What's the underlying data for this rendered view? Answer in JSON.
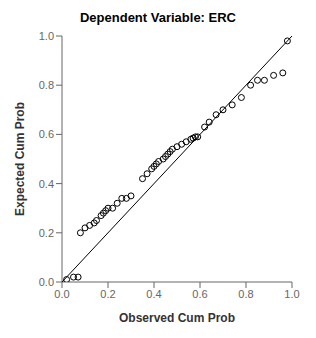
{
  "chart_data": {
    "type": "scatter",
    "title": "Dependent Variable: ERC",
    "xlabel": "Observed Cum Prob",
    "ylabel": "Expected Cum Prob",
    "xlim": [
      0.0,
      1.0
    ],
    "ylim": [
      0.0,
      1.0
    ],
    "xticks": [
      {
        "value": 0.0,
        "label": "0.0"
      },
      0.2,
      0.4,
      0.6,
      0.8,
      {
        "value": 1.0,
        "label": "1.0"
      }
    ],
    "yticks": [
      {
        "value": 0.0,
        "label": "0.0"
      },
      0.2,
      0.4,
      0.6,
      0.8,
      {
        "value": 1.0,
        "label": "1.0"
      }
    ],
    "grid": false,
    "series": [
      {
        "type": "line",
        "color": "#000000",
        "x": [
          0,
          1
        ],
        "values": [
          0,
          1
        ]
      },
      {
        "type": "scatter",
        "color": "#000000",
        "marker": "circle",
        "x": [
          0.02,
          0.05,
          0.07,
          0.08,
          0.1,
          0.12,
          0.14,
          0.15,
          0.17,
          0.18,
          0.19,
          0.2,
          0.22,
          0.24,
          0.26,
          0.28,
          0.3,
          0.35,
          0.37,
          0.39,
          0.4,
          0.41,
          0.42,
          0.44,
          0.45,
          0.46,
          0.47,
          0.48,
          0.5,
          0.52,
          0.54,
          0.56,
          0.57,
          0.58,
          0.59,
          0.62,
          0.64,
          0.67,
          0.7,
          0.74,
          0.78,
          0.82,
          0.85,
          0.88,
          0.92,
          0.96,
          0.98
        ],
        "values": [
          0.01,
          0.02,
          0.02,
          0.2,
          0.22,
          0.23,
          0.24,
          0.25,
          0.27,
          0.28,
          0.29,
          0.3,
          0.3,
          0.32,
          0.34,
          0.34,
          0.35,
          0.42,
          0.44,
          0.46,
          0.47,
          0.48,
          0.49,
          0.5,
          0.51,
          0.52,
          0.53,
          0.54,
          0.55,
          0.56,
          0.57,
          0.58,
          0.585,
          0.59,
          0.59,
          0.63,
          0.65,
          0.68,
          0.7,
          0.72,
          0.75,
          0.8,
          0.82,
          0.82,
          0.84,
          0.85,
          0.98
        ]
      }
    ]
  }
}
